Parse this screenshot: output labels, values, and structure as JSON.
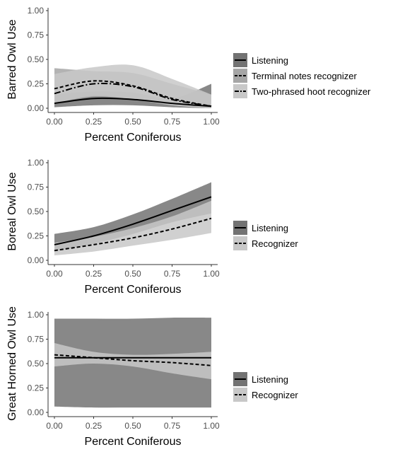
{
  "chart_data": [
    {
      "type": "line",
      "xlabel": "Percent Coniferous",
      "ylabel": "Barred Owl Use",
      "xlim": [
        0,
        1
      ],
      "ylim": [
        0,
        1
      ],
      "xticks": [
        "0.00",
        "0.25",
        "0.50",
        "0.75",
        "1.00"
      ],
      "yticks": [
        "0.00",
        "0.25",
        "0.50",
        "0.75",
        "1.00"
      ],
      "grid": false,
      "legend_position": "right",
      "x": [
        0,
        0.25,
        0.5,
        0.75,
        1
      ],
      "series": [
        {
          "name": "Listening",
          "style": "solid",
          "fill": "#737373",
          "values": [
            0.05,
            0.1,
            0.09,
            0.05,
            0.02
          ],
          "lower": [
            0.01,
            0.03,
            0.03,
            0.01,
            0.0
          ],
          "upper": [
            0.14,
            0.17,
            0.16,
            0.1,
            0.25
          ]
        },
        {
          "name": "Terminal notes recognizer",
          "style": "dashed",
          "fill": "#a6a6a6",
          "values": [
            0.2,
            0.28,
            0.23,
            0.1,
            0.02
          ],
          "lower": [
            0.06,
            0.13,
            0.1,
            0.03,
            0.0
          ],
          "upper": [
            0.41,
            0.38,
            0.36,
            0.25,
            0.14
          ]
        },
        {
          "name": "Two-phrased hoot recognizer",
          "style": "dotdash",
          "fill": "#c8c8c8",
          "values": [
            0.15,
            0.25,
            0.22,
            0.09,
            0.02
          ],
          "lower": [
            0.05,
            0.12,
            0.09,
            0.03,
            0.0
          ],
          "upper": [
            0.35,
            0.42,
            0.44,
            0.3,
            0.14
          ]
        }
      ]
    },
    {
      "type": "line",
      "xlabel": "Percent Coniferous",
      "ylabel": "Boreal Owl Use",
      "xlim": [
        0,
        1
      ],
      "ylim": [
        0,
        1
      ],
      "xticks": [
        "0.00",
        "0.25",
        "0.50",
        "0.75",
        "1.00"
      ],
      "yticks": [
        "0.00",
        "0.25",
        "0.50",
        "0.75",
        "1.00"
      ],
      "grid": false,
      "legend_position": "right",
      "x": [
        0,
        0.25,
        0.5,
        0.75,
        1
      ],
      "series": [
        {
          "name": "Listening",
          "style": "solid",
          "fill": "#737373",
          "values": [
            0.16,
            0.25,
            0.37,
            0.51,
            0.65
          ],
          "lower": [
            0.09,
            0.17,
            0.27,
            0.39,
            0.48
          ],
          "upper": [
            0.27,
            0.34,
            0.47,
            0.63,
            0.8
          ]
        },
        {
          "name": "Recognizer",
          "style": "dashed",
          "fill": "#c8c8c8",
          "values": [
            0.1,
            0.16,
            0.23,
            0.32,
            0.43
          ],
          "lower": [
            0.05,
            0.09,
            0.15,
            0.21,
            0.28
          ],
          "upper": [
            0.18,
            0.24,
            0.33,
            0.45,
            0.61
          ]
        }
      ]
    },
    {
      "type": "line",
      "xlabel": "Percent Coniferous",
      "ylabel": "Great Horned Owl Use",
      "xlim": [
        0,
        1
      ],
      "ylim": [
        0,
        1
      ],
      "xticks": [
        "0.00",
        "0.25",
        "0.50",
        "0.75",
        "1.00"
      ],
      "yticks": [
        "0.00",
        "0.25",
        "0.50",
        "0.75",
        "1.00"
      ],
      "grid": false,
      "legend_position": "right",
      "x": [
        0,
        0.25,
        0.5,
        0.75,
        1
      ],
      "series": [
        {
          "name": "Listening",
          "style": "solid",
          "fill": "#737373",
          "values": [
            0.56,
            0.56,
            0.56,
            0.56,
            0.56
          ],
          "lower": [
            0.06,
            0.05,
            0.05,
            0.05,
            0.05
          ],
          "upper": [
            0.96,
            0.96,
            0.96,
            0.97,
            0.97
          ]
        },
        {
          "name": "Recognizer",
          "style": "dashed",
          "fill": "#c8c8c8",
          "values": [
            0.59,
            0.56,
            0.53,
            0.51,
            0.48
          ],
          "lower": [
            0.47,
            0.5,
            0.47,
            0.4,
            0.34
          ],
          "upper": [
            0.71,
            0.62,
            0.59,
            0.6,
            0.62
          ]
        }
      ]
    }
  ]
}
